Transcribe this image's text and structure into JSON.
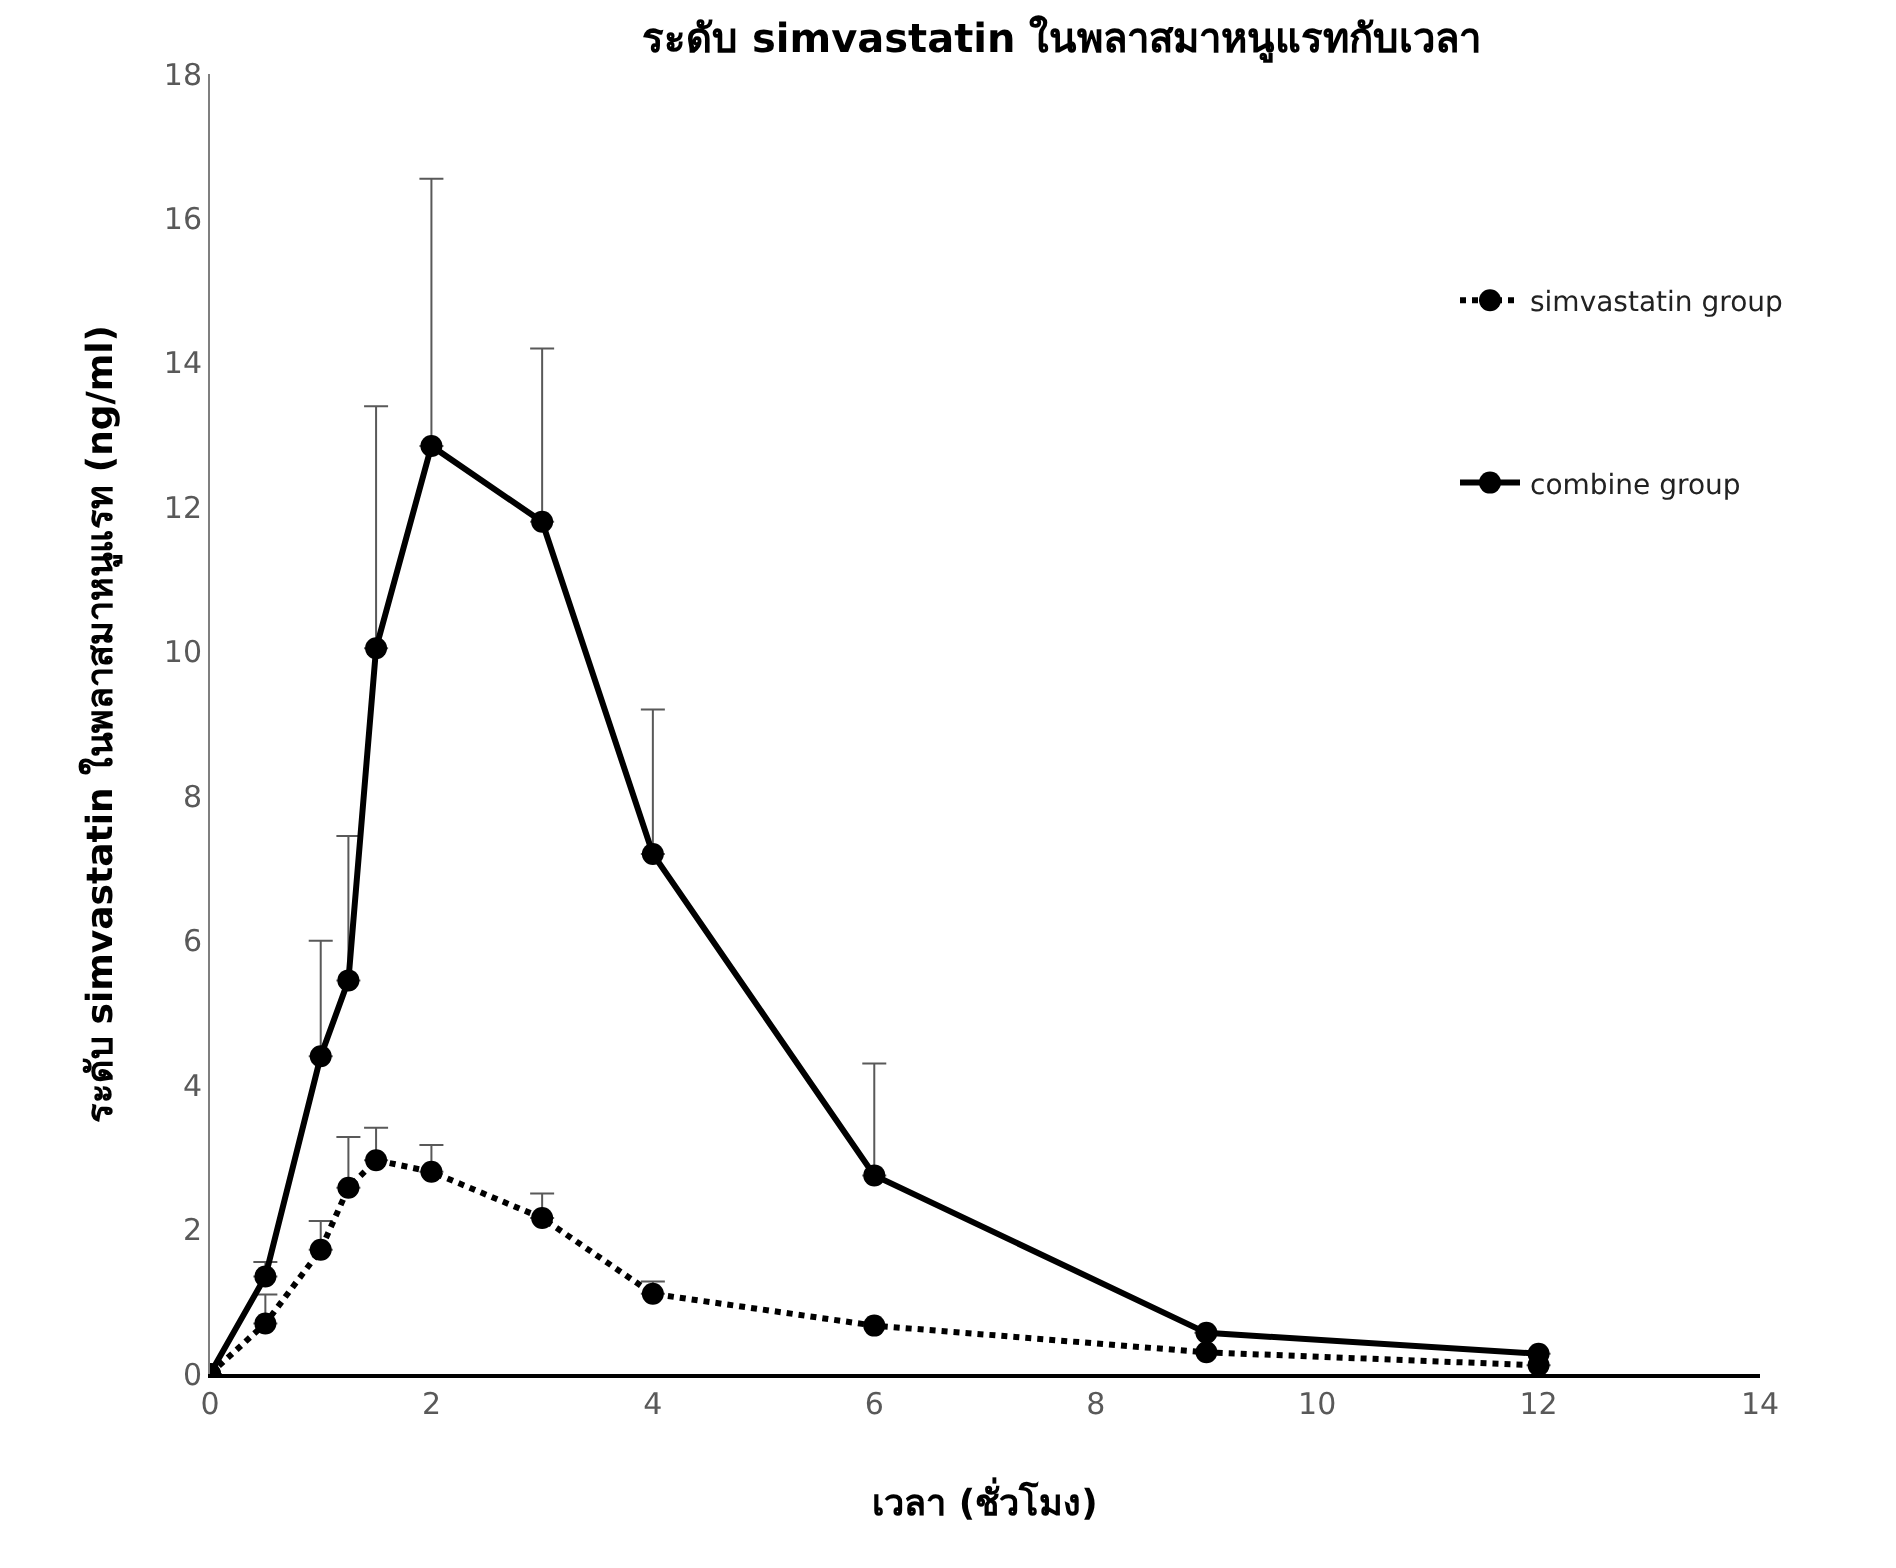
{
  "chart_data": {
    "type": "line",
    "title": "ระดับ simvastatin ในพลาสมาหนูแรทกับเวลา",
    "xlabel": "เวลา (ชั่วโมง)",
    "ylabel": "ระดับ simvastatin ในพลาสมาหนูแรท (ng/ml)",
    "x": [
      0,
      0.5,
      1,
      1.25,
      1.5,
      2,
      3,
      4,
      6,
      9,
      12
    ],
    "series": [
      {
        "name": "simvastatin group",
        "color": "#000000",
        "line_style": "dotted",
        "values": [
          0,
          0.7,
          1.72,
          2.58,
          2.96,
          2.8,
          2.16,
          1.11,
          0.67,
          0.3,
          0.12
        ],
        "errors": [
          null,
          [
            0.7,
            1.1
          ],
          [
            1.72,
            2.12
          ],
          [
            2.58,
            3.28
          ],
          [
            2.96,
            3.41
          ],
          [
            2.8,
            3.17
          ],
          [
            2.16,
            2.5
          ],
          [
            1.11,
            1.28
          ],
          null,
          null,
          null
        ]
      },
      {
        "name": "combine group",
        "color": "#000000",
        "line_style": "solid",
        "values": [
          0,
          1.35,
          4.4,
          5.45,
          10.05,
          12.85,
          11.8,
          7.2,
          2.75,
          0.57,
          0.28
        ],
        "errors": [
          null,
          [
            1.35,
            1.55
          ],
          [
            4.4,
            6.0
          ],
          [
            5.45,
            7.45
          ],
          [
            10.05,
            13.4
          ],
          [
            12.85,
            16.55
          ],
          [
            11.8,
            14.2
          ],
          [
            7.2,
            9.2
          ],
          [
            2.75,
            4.3
          ],
          null,
          null
        ]
      }
    ],
    "xlim": [
      0,
      14
    ],
    "xticks": [
      0,
      2,
      4,
      6,
      8,
      10,
      12,
      14
    ],
    "ylim": [
      0,
      18
    ],
    "yticks": [
      0,
      2,
      4,
      6,
      8,
      10,
      12,
      14,
      16,
      18
    ],
    "grid": false,
    "legend": "top right",
    "marker": "circle"
  }
}
